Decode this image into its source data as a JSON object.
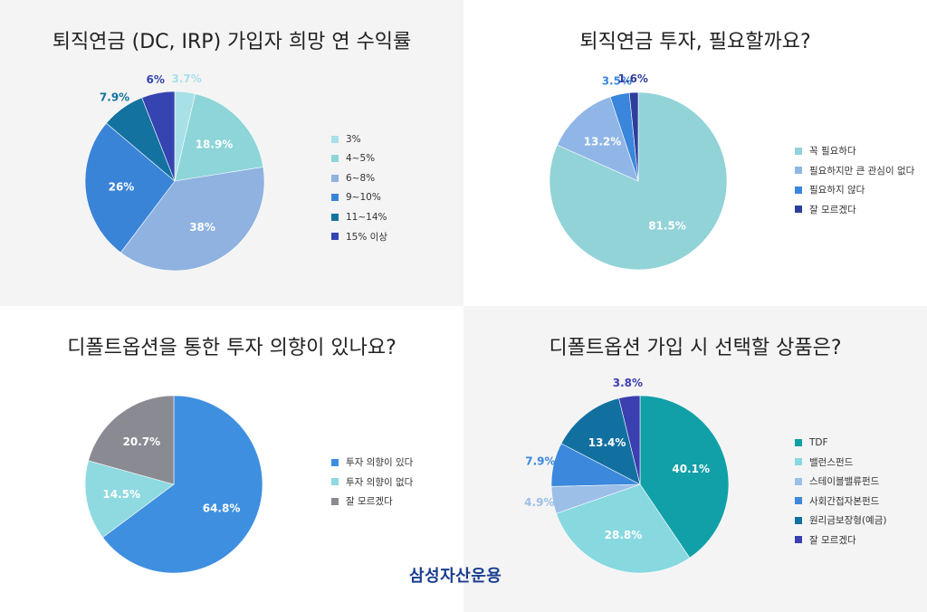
{
  "charts": [
    {
      "type": "pie",
      "title": "퇴직연금 (DC, IRP) 가입자 희망 연 수익률",
      "slices": [
        {
          "label": "3%",
          "value": 3.7,
          "display": "3.7%",
          "color": "#a8e0e8"
        },
        {
          "label": "4~5%",
          "value": 18.9,
          "display": "18.9%",
          "color": "#8dd5d8"
        },
        {
          "label": "6~8%",
          "value": 38,
          "display": "38%",
          "color": "#8fb2e0"
        },
        {
          "label": "9~10%",
          "value": 26,
          "display": "26%",
          "color": "#3a84d8"
        },
        {
          "label": "11~14%",
          "value": 7.9,
          "display": "7.9%",
          "color": "#1472a0"
        },
        {
          "label": "15% 이상",
          "value": 6,
          "display": "6%",
          "color": "#3544b0"
        }
      ]
    },
    {
      "type": "pie",
      "title": "퇴직연금 투자, 필요할까요?",
      "slices": [
        {
          "label": "꼭 필요하다",
          "value": 81.5,
          "display": "81.5%",
          "color": "#92d3d8"
        },
        {
          "label": "필요하지만 큰 관심이 없다",
          "value": 13.2,
          "display": "13.2%",
          "color": "#8fb6e6"
        },
        {
          "label": "필요하지 않다",
          "value": 3.5,
          "display": "3.5%",
          "color": "#3a86dc"
        },
        {
          "label": "잘 모르겠다",
          "value": 1.6,
          "display": "1.6%",
          "color": "#2e3e9c"
        }
      ]
    },
    {
      "type": "pie",
      "title": "디폴트옵션을 통한 투자 의향이 있나요?",
      "slices": [
        {
          "label": "투자 의향이 있다",
          "value": 64.8,
          "display": "64.8%",
          "color": "#3f8fe0"
        },
        {
          "label": "투자 의향이 없다",
          "value": 14.5,
          "display": "14.5%",
          "color": "#8fd9e0"
        },
        {
          "label": "잘 모르겠다",
          "value": 20.7,
          "display": "20.7%",
          "color": "#8a8a93"
        }
      ]
    },
    {
      "type": "pie",
      "title": "디폴트옵션 가입 시 선택할 상품은?",
      "slices": [
        {
          "label": "TDF",
          "value": 40.1,
          "display": "40.1%",
          "color": "#12a0a8"
        },
        {
          "label": "밸런스펀드",
          "value": 28.8,
          "display": "28.8%",
          "color": "#88d8e0"
        },
        {
          "label": "스테이블밸류펀드",
          "value": 4.9,
          "display": "4.9%",
          "color": "#9cbfe8"
        },
        {
          "label": "사회간접자본펀드",
          "value": 7.9,
          "display": "7.9%",
          "color": "#3b88dc"
        },
        {
          "label": "원리금보장형(예금)",
          "value": 13.4,
          "display": "13.4%",
          "color": "#1270a0"
        },
        {
          "label": "잘 모르겠다",
          "value": 3.8,
          "display": "3.8%",
          "color": "#3a40b0"
        }
      ]
    }
  ],
  "brand": "삼성자산운용"
}
